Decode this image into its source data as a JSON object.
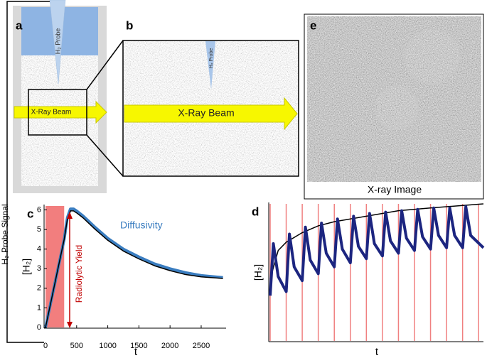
{
  "figure": {
    "side_label": "H₂ Probe Signal",
    "panel_a": {
      "label": "a",
      "probe_label": "H₂ Probe",
      "beam_label": "X-Ray Beam"
    },
    "panel_b": {
      "label": "b",
      "probe_label": "H₂ Probe",
      "beam_label": "X-Ray Beam"
    },
    "panel_e": {
      "label": "e",
      "caption": "X-ray Image"
    }
  },
  "chart_data": [
    {
      "type": "line",
      "panel_label": "c",
      "ylabel": "[H₂]",
      "xlabel": "t",
      "x": [
        0,
        100,
        200,
        300,
        350,
        400,
        450,
        500,
        600,
        800,
        1000,
        1250,
        1500,
        1750,
        2000,
        2250,
        2500,
        2850
      ],
      "series": [
        {
          "name": "Diffusivity",
          "color": "#3a7dc0",
          "values": [
            0,
            1.5,
            3,
            4.5,
            5.6,
            6.05,
            6.05,
            5.95,
            5.7,
            5.1,
            4.55,
            4.0,
            3.6,
            3.25,
            3.0,
            2.8,
            2.65,
            2.55
          ]
        },
        {
          "color": "#000000",
          "values": [
            0,
            1.5,
            3,
            4.5,
            5.5,
            5.95,
            5.95,
            5.85,
            5.6,
            5.0,
            4.45,
            3.9,
            3.5,
            3.15,
            2.9,
            2.7,
            2.58,
            2.5
          ]
        }
      ],
      "shaded_span": {
        "x": [
          0,
          300
        ],
        "color": "#f27e7e"
      },
      "annotation": "Radiolytic Yield",
      "xlim": [
        0,
        2900
      ],
      "ylim": [
        0,
        6.2
      ],
      "xticks": [
        0,
        500,
        1000,
        1500,
        2000,
        2500
      ],
      "yticks": [
        0,
        1,
        2,
        3,
        4,
        5,
        6
      ]
    },
    {
      "type": "line",
      "panel_label": "d",
      "ylabel": "[H₂]",
      "xlabel": "t",
      "x": [
        0,
        0.2,
        0.5,
        1,
        1.2,
        1.5,
        2,
        2.2,
        2.5,
        3,
        3.2,
        3.5,
        4,
        4.2,
        4.5,
        5,
        5.2,
        5.5,
        6,
        6.2,
        6.5,
        7,
        7.2,
        7.5,
        8,
        8.2,
        8.5,
        9,
        9.2,
        9.5,
        10,
        10.2,
        10.5,
        11,
        11.2,
        11.5,
        12,
        12.2,
        12.5,
        13.3
      ],
      "series": [
        {
          "color": "#1c2580",
          "values": [
            0.33,
            0.71,
            0.47,
            0.36,
            0.78,
            0.54,
            0.44,
            0.83,
            0.59,
            0.49,
            0.86,
            0.64,
            0.54,
            0.89,
            0.67,
            0.57,
            0.91,
            0.69,
            0.6,
            0.93,
            0.71,
            0.62,
            0.94,
            0.73,
            0.64,
            0.95,
            0.75,
            0.66,
            0.96,
            0.76,
            0.67,
            0.97,
            0.77,
            0.68,
            0.97,
            0.77,
            0.68,
            0.98,
            0.77,
            0.68
          ]
        }
      ],
      "envelope": {
        "x": [
          0,
          0.5,
          1,
          2,
          3,
          4,
          6,
          8,
          10,
          13.3
        ],
        "values": [
          0.45,
          0.66,
          0.72,
          0.79,
          0.84,
          0.87,
          0.91,
          0.95,
          0.97,
          1.0
        ],
        "color": "#000000"
      },
      "pulse_times": [
        0,
        1,
        2,
        3,
        4,
        5,
        6,
        7,
        8,
        9,
        10,
        11,
        12,
        13
      ],
      "pulse_color": "#f08080",
      "xlim": [
        0,
        13.3
      ],
      "ylim": [
        0,
        1
      ]
    }
  ]
}
